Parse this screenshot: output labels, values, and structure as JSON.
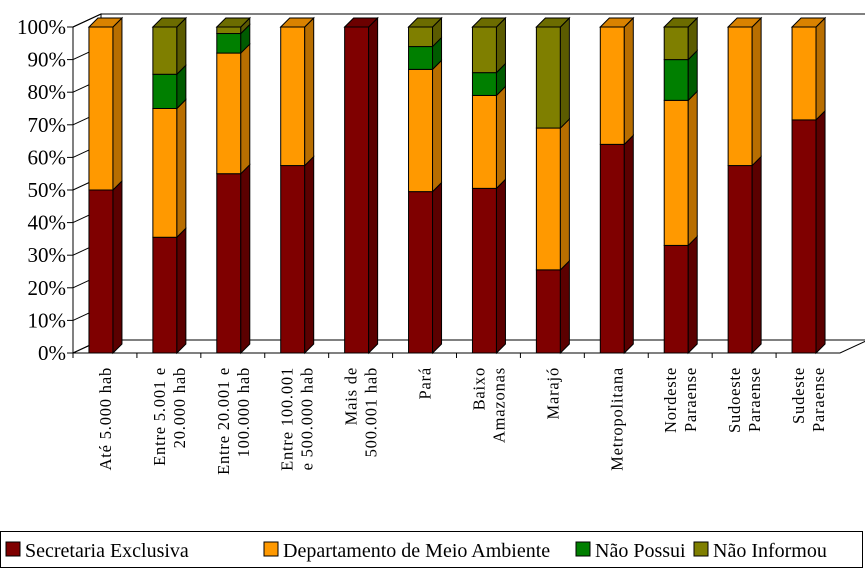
{
  "chart_data": {
    "type": "bar",
    "stacked": true,
    "three_d": true,
    "categories": [
      [
        "Até 5.000 hab"
      ],
      [
        "Entre 5.001 e",
        "20.000 hab"
      ],
      [
        "Entre 20.001 e",
        "100.000 hab"
      ],
      [
        "Entre 100.001",
        "e 500.000 hab"
      ],
      [
        "Mais de",
        "500.001 hab"
      ],
      [
        "Pará"
      ],
      [
        "Baixo",
        "Amazonas"
      ],
      [
        "Marajó"
      ],
      [
        "Metropolitana"
      ],
      [
        "Nordeste",
        "Paraense"
      ],
      [
        "Sudoeste",
        "Paraense"
      ],
      [
        "Sudeste",
        "Paraense"
      ]
    ],
    "series": [
      {
        "name": "Secretaria Exclusiva",
        "color": "#7f0000",
        "values": [
          50,
          35.5,
          55,
          57.5,
          100,
          49.5,
          50.5,
          25.5,
          64,
          33,
          57.5,
          71.5
        ]
      },
      {
        "name": "Departamento de Meio Ambiente",
        "color": "#ff9900",
        "values": [
          50,
          39.5,
          37,
          42.5,
          0,
          37.5,
          28.5,
          43.5,
          36,
          44.5,
          42.5,
          28.5
        ]
      },
      {
        "name": "Não Possui",
        "color": "#007f00",
        "values": [
          0,
          10.5,
          6,
          0,
          0,
          7,
          7,
          0,
          0,
          12.5,
          0,
          0
        ]
      },
      {
        "name": "Não Informou",
        "color": "#7f7f00",
        "values": [
          0,
          14.5,
          2,
          0,
          0,
          6,
          14,
          31,
          0,
          10,
          0,
          0
        ]
      }
    ],
    "yticks": [
      "0%",
      "10%",
      "20%",
      "30%",
      "40%",
      "50%",
      "60%",
      "70%",
      "80%",
      "90%",
      "100%"
    ],
    "ylim": [
      0,
      100
    ],
    "legend_position": "bottom"
  }
}
